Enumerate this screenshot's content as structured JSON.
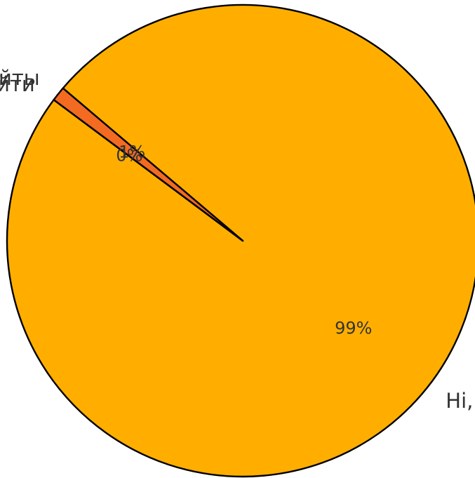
{
  "chart_data": {
    "type": "pie",
    "title": "",
    "categories": [
      "Hi,",
      "Поиск работы в Москве: вакансии и сайты",
      "Найти"
    ],
    "values": [
      99,
      1,
      0
    ],
    "percent_labels": [
      "99%",
      "1%",
      "0%"
    ],
    "colors": [
      "#FFAE00",
      "#F26B21",
      "#F26B21"
    ],
    "start_angle_deg": 143.3,
    "direction": "counterclockwise",
    "legend": "none"
  }
}
